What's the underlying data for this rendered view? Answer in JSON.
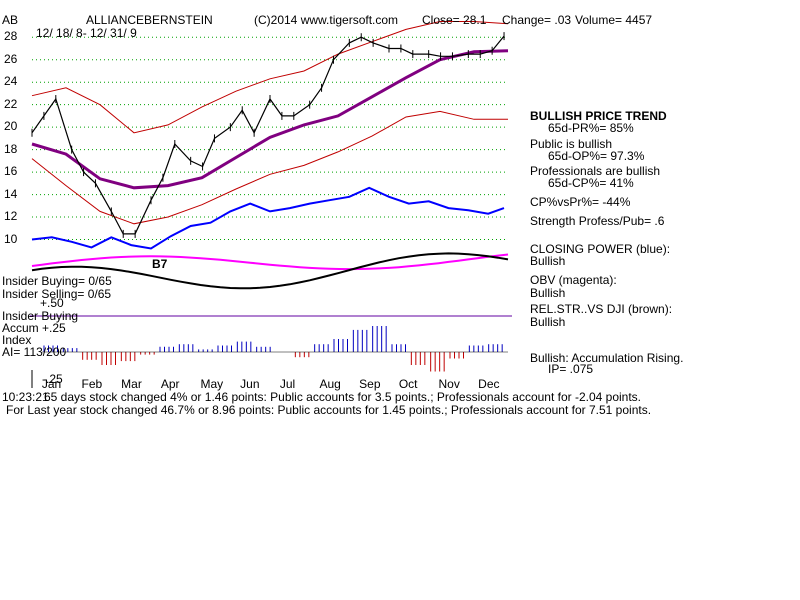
{
  "header": {
    "ticker": "AB",
    "company": "ALLIANCEBERNSTEIN",
    "copyright": "(C)2014 www.tigersoft.com",
    "close": "Close=  28.1",
    "change": "Change= .03",
    "volume": "Volume= 4457",
    "date_range": "12/ 18/ 8- 12/ 31/ 9"
  },
  "chart_data": {
    "type": "line",
    "y_ticks": [
      "28",
      "26",
      "24",
      "22",
      "20",
      "18",
      "16",
      "14",
      "12",
      "10"
    ],
    "x_labels": [
      "Jan",
      "Feb",
      "Mar",
      "Apr",
      "May",
      "Jun",
      "Jul",
      "Aug",
      "Sep",
      "Oct",
      "Nov",
      "Dec"
    ],
    "ylim": [
      8,
      29
    ],
    "grid": true,
    "annotations": {
      "signal": "B7"
    },
    "series": [
      {
        "name": "Price",
        "x": [
          0,
          0.3,
          0.6,
          1,
          1.3,
          1.6,
          2,
          2.3,
          2.6,
          3,
          3.3,
          3.6,
          4,
          4.3,
          4.6,
          5,
          5.3,
          5.6,
          6,
          6.3,
          6.6,
          7,
          7.3,
          7.6,
          8,
          8.3,
          8.6,
          9,
          9.3,
          9.6,
          10,
          10.3,
          10.6,
          11,
          11.3,
          11.6,
          11.9
        ],
        "values": [
          19.5,
          21,
          22.5,
          18,
          16,
          15,
          12.5,
          10.5,
          10.5,
          13.5,
          15.5,
          18.5,
          17,
          16.5,
          19,
          20,
          21.5,
          19.5,
          22.5,
          21,
          21,
          22,
          23.5,
          26,
          27.5,
          28,
          27.5,
          27,
          27,
          26.5,
          26.5,
          26.3,
          26.3,
          26.5,
          26.5,
          26.8,
          28.1
        ]
      },
      {
        "name": "Closing Power",
        "x": [
          0,
          0.5,
          1,
          1.5,
          2,
          2.5,
          3,
          3.5,
          4,
          4.5,
          5,
          5.5,
          6,
          6.5,
          7,
          7.5,
          8,
          8.5,
          9,
          9.5,
          10,
          10.5,
          11,
          11.5,
          11.9
        ],
        "values": [
          10,
          10.2,
          9.8,
          9.3,
          10.2,
          9.5,
          9.2,
          10.3,
          11.2,
          11.5,
          12.5,
          13.2,
          12.5,
          12.8,
          13.2,
          13.5,
          13.8,
          14.6,
          13.8,
          13.2,
          13.4,
          12.8,
          12.6,
          12.3,
          12.8
        ]
      }
    ],
    "bands": {
      "upper": [
        22.8,
        23.5,
        22,
        19.5,
        20.2,
        21.8,
        23.2,
        24.3,
        25,
        26.5,
        27.6,
        28.7,
        29.4,
        29.4,
        29.2
      ],
      "lower": [
        17.2,
        14.8,
        12.5,
        11.4,
        12,
        13.1,
        14.5,
        15.8,
        16.6,
        17.8,
        19.2,
        20.9,
        21.4,
        20.7,
        20.7
      ],
      "ma": [
        18.5,
        17.6,
        15.4,
        14.6,
        14.8,
        15.5,
        17.3,
        19.1,
        20.2,
        21,
        22.7,
        24.4,
        26,
        26.7,
        26.8
      ]
    },
    "indicators": {
      "insider_buying": "Insider Buying= 0/65",
      "insider_selling": "Insider Selling= 0/65",
      "accum_top": "Insider Buying",
      "accum_label": "Accum  +.25",
      "index_label": "Index",
      "ai": "AI= 113/200",
      "neg": "-.25",
      "pos50": "+.50",
      "accum_values": [
        0.05,
        0.03,
        -0.06,
        -0.1,
        -0.07,
        -0.02,
        0.04,
        0.06,
        0.02,
        0.05,
        0.08,
        0.04,
        0,
        -0.04,
        0.06,
        0.1,
        0.17,
        0.2,
        0.06,
        -0.1,
        -0.15,
        -0.05,
        0.05,
        0.06
      ]
    }
  },
  "right_panel": {
    "trend_title": "BULLISH PRICE TREND",
    "pr": "65d-PR%= 85%",
    "public": "Public is bullish",
    "op": "65d-OP%= 97.3%",
    "pros": "Professionals are bullish",
    "cp": "65d-CP%= 41%",
    "cpvs": "CP%vsPr%= -44%",
    "strength": "Strength Profess/Pub= .6",
    "closing_power": "CLOSING POWER (blue):",
    "cp_state": "Bullish",
    "obv": "OBV (magenta):",
    "obv_state": "Bullish",
    "rel": "REL.STR..VS DJI (brown):",
    "rel_state": "Bullish",
    "accum_msg": "Bullish: Accumulation Rising.",
    "ip": "IP=  .075"
  },
  "footer": {
    "line1_prefix": "10:23:21",
    "line1": "65 days stock changed  4% or  1.46 points:  Public accounts for  3.5 points.;  Professionals account for -2.04 points.",
    "line2": "For Last year stock changed  46.7% or  8.96 points:  Public accounts for  1.45 points.;  Professionals account for  7.51 points."
  },
  "colors": {
    "price": "#000000",
    "band": "#c00000",
    "ma": "#800080",
    "cp": "#0000ff",
    "obv": "#ff00ff",
    "grid": "#00a000",
    "pos_hist": "#0000c0",
    "neg_hist": "#c00000"
  }
}
